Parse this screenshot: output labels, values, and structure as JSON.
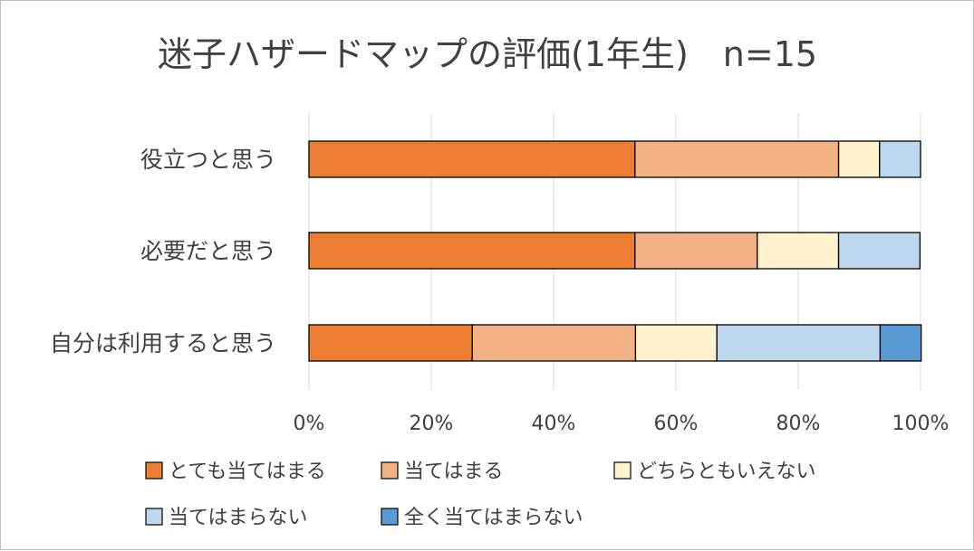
{
  "chart_data": {
    "type": "bar",
    "orientation": "horizontal",
    "stacked": true,
    "percent": true,
    "title": "迷子ハザードマップの評価(1年生)　n=15",
    "categories": [
      "役立つと思う",
      "必要だと思う",
      "自分は利用すると思う"
    ],
    "xlim": [
      0,
      100
    ],
    "xticks": [
      "0%",
      "20%",
      "40%",
      "60%",
      "80%",
      "100%"
    ],
    "grid": true,
    "legend_position": "bottom",
    "series": [
      {
        "name": "とても当てはまる",
        "color": "#ED7D31",
        "values": [
          53.3,
          53.3,
          26.7
        ]
      },
      {
        "name": "当てはまる",
        "color": "#F4B183",
        "values": [
          33.3,
          20.0,
          26.7
        ]
      },
      {
        "name": "どちらともいえない",
        "color": "#FFF2CC",
        "values": [
          6.7,
          13.3,
          13.3
        ]
      },
      {
        "name": "当てはまらない",
        "color": "#BDD7EE",
        "values": [
          6.7,
          13.3,
          26.7
        ]
      },
      {
        "name": "全く当てはまらない",
        "color": "#5B9BD5",
        "values": [
          0,
          0,
          6.7
        ]
      }
    ]
  }
}
